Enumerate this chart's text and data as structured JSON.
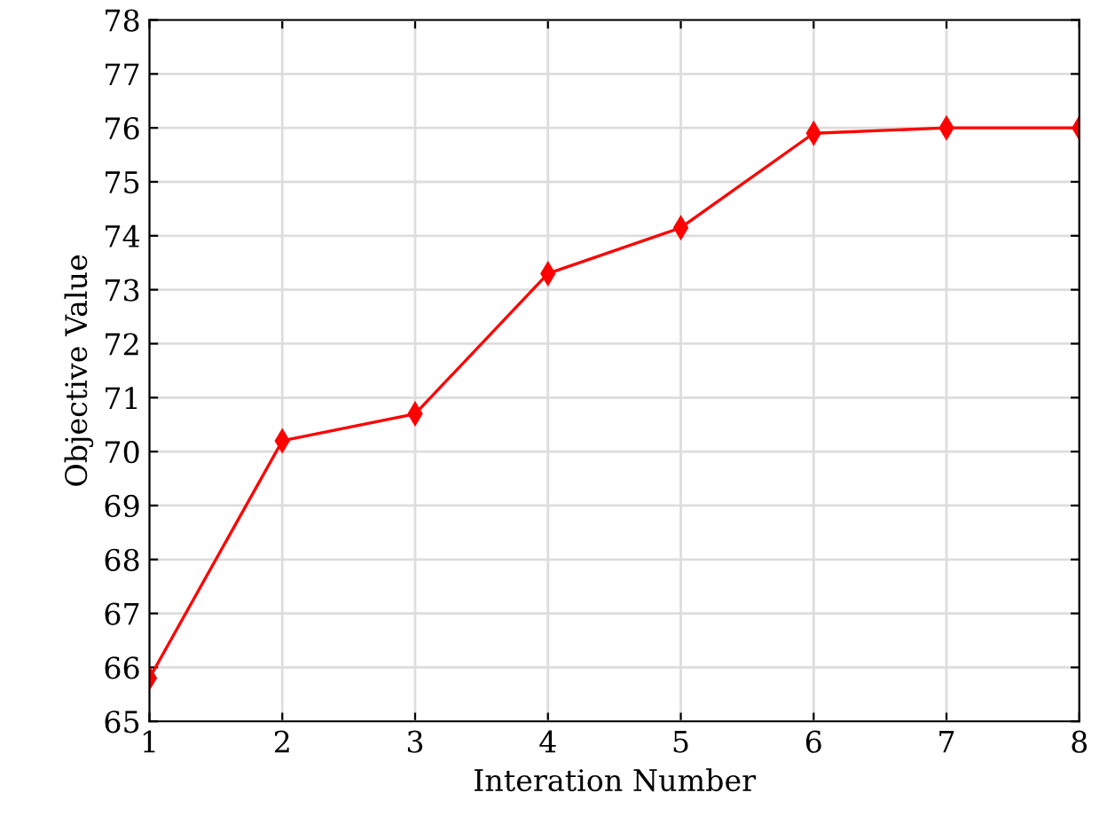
{
  "chart_data": {
    "type": "line",
    "xlabel": "Interation Number",
    "ylabel": "Objective Value",
    "x": [
      1,
      2,
      3,
      4,
      5,
      6,
      7,
      8
    ],
    "series": [
      {
        "color": "#ff0000",
        "values": [
          65.8,
          70.2,
          70.7,
          73.3,
          74.15,
          75.9,
          76.0,
          76.0
        ]
      }
    ],
    "xlim": [
      1,
      8
    ],
    "xticks": [
      1,
      2,
      3,
      4,
      5,
      6,
      7,
      8
    ],
    "ylim": [
      65,
      78
    ],
    "yticks": [
      65,
      66,
      67,
      68,
      69,
      70,
      71,
      72,
      73,
      74,
      75,
      76,
      77,
      78
    ],
    "grid": true,
    "marker": "diamond",
    "line_style": "solid"
  }
}
